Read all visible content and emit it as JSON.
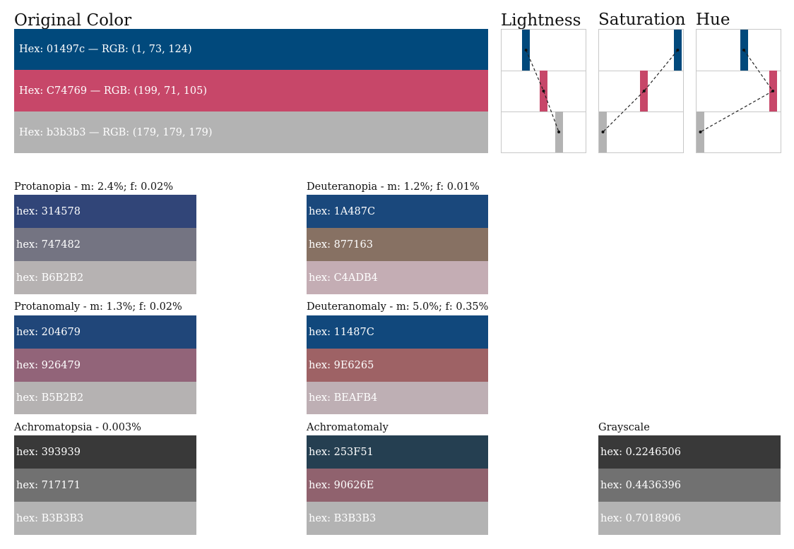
{
  "original": {
    "title": "Original Color",
    "swatches": [
      {
        "hex": "#01497c",
        "label": "Hex: 01497c — RGB: (1, 73, 124)"
      },
      {
        "hex": "#C74769",
        "label": "Hex: C74769 — RGB: (199, 71, 105)"
      },
      {
        "hex": "#b3b3b3",
        "label": "Hex: b3b3b3 — RGB: (179, 179, 179)"
      }
    ]
  },
  "chart_data": {
    "type": "dot-plot",
    "panels": [
      {
        "title": "Lightness",
        "values": [
          0.27,
          0.5,
          0.7
        ]
      },
      {
        "title": "Saturation",
        "values": [
          0.98,
          0.54,
          0.0
        ]
      },
      {
        "title": "Hue",
        "values": [
          0.57,
          0.95,
          0.0
        ]
      }
    ],
    "colors": [
      "#01497c",
      "#C74769",
      "#b3b3b3"
    ]
  },
  "simulations": [
    {
      "title": "Protanopia - m: 2.4%; f: 0.02%",
      "swatches": [
        {
          "hex": "#314578",
          "label": "hex: 314578"
        },
        {
          "hex": "#747482",
          "label": "hex: 747482"
        },
        {
          "hex": "#B6B2B2",
          "label": "hex: B6B2B2"
        }
      ]
    },
    {
      "title": "Deuteranopia - m: 1.2%; f: 0.01%",
      "swatches": [
        {
          "hex": "#1A487C",
          "label": "hex: 1A487C"
        },
        {
          "hex": "#877163",
          "label": "hex: 877163"
        },
        {
          "hex": "#C4ADB4",
          "label": "hex: C4ADB4"
        }
      ]
    },
    {
      "title": "Protanomaly - m: 1.3%; f: 0.02%",
      "swatches": [
        {
          "hex": "#204679",
          "label": "hex: 204679"
        },
        {
          "hex": "#926479",
          "label": "hex: 926479"
        },
        {
          "hex": "#B5B2B2",
          "label": "hex: B5B2B2"
        }
      ]
    },
    {
      "title": "Deuteranomaly - m: 5.0%; f: 0.35%",
      "swatches": [
        {
          "hex": "#11487C",
          "label": "hex: 11487C"
        },
        {
          "hex": "#9E6265",
          "label": "hex: 9E6265"
        },
        {
          "hex": "#BEAFB4",
          "label": "hex: BEAFB4"
        }
      ]
    },
    {
      "title": "Achromatopsia -  0.003%",
      "swatches": [
        {
          "hex": "#393939",
          "label": "hex: 393939"
        },
        {
          "hex": "#717171",
          "label": "hex: 717171"
        },
        {
          "hex": "#B3B3B3",
          "label": "hex: B3B3B3"
        }
      ]
    },
    {
      "title": "Achromatomaly",
      "swatches": [
        {
          "hex": "#253F51",
          "label": "hex: 253F51"
        },
        {
          "hex": "#90626E",
          "label": "hex: 90626E"
        },
        {
          "hex": "#B3B3B3",
          "label": "hex: B3B3B3"
        }
      ]
    },
    {
      "title": "Grayscale",
      "swatches": [
        {
          "hex": "#393939",
          "label": "hex: 0.2246506"
        },
        {
          "hex": "#717171",
          "label": "hex: 0.4436396"
        },
        {
          "hex": "#B3B3B3",
          "label": "hex: 0.7018906"
        }
      ]
    }
  ]
}
